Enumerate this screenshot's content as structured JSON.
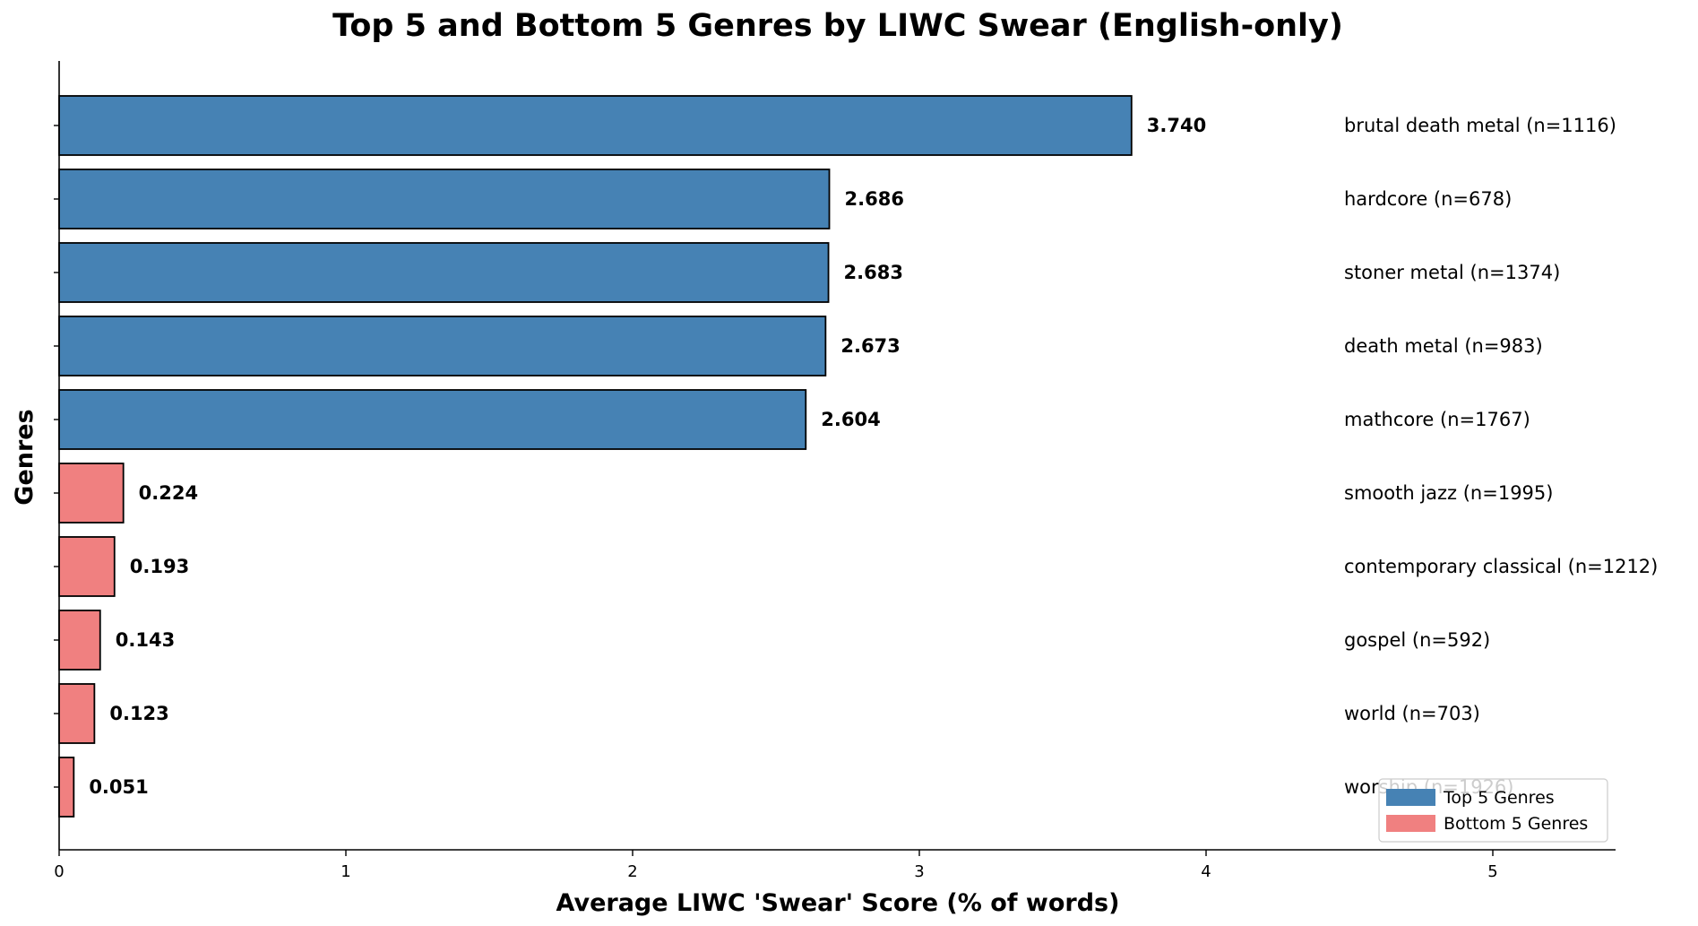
{
  "chart_data": {
    "type": "bar",
    "orientation": "horizontal",
    "title": "Top 5 and Bottom 5 Genres by LIWC Swear (English-only)",
    "xlabel": "Average LIWC 'Swear' Score (% of words)",
    "ylabel": "Genres",
    "xlim": [
      0,
      5.45
    ],
    "xticks": [
      "0",
      "1",
      "2",
      "3",
      "4",
      "5"
    ],
    "grid": false,
    "legend_position": "bottom-right",
    "colors": {
      "top": "#4682b4",
      "bottom": "#f08080",
      "edge": "#000000"
    },
    "legend": [
      {
        "label": "Top 5 Genres",
        "group": "top"
      },
      {
        "label": "Bottom 5 Genres",
        "group": "bottom"
      }
    ],
    "bars": [
      {
        "genre_label": "brutal death metal (n=1116)",
        "value": 3.74,
        "value_label": "3.740",
        "group": "top"
      },
      {
        "genre_label": "hardcore (n=678)",
        "value": 2.686,
        "value_label": "2.686",
        "group": "top"
      },
      {
        "genre_label": "stoner metal (n=1374)",
        "value": 2.683,
        "value_label": "2.683",
        "group": "top"
      },
      {
        "genre_label": "death metal (n=983)",
        "value": 2.673,
        "value_label": "2.673",
        "group": "top"
      },
      {
        "genre_label": "mathcore (n=1767)",
        "value": 2.604,
        "value_label": "2.604",
        "group": "top"
      },
      {
        "genre_label": "smooth jazz (n=1995)",
        "value": 0.224,
        "value_label": "0.224",
        "group": "bottom"
      },
      {
        "genre_label": "contemporary classical (n=1212)",
        "value": 0.193,
        "value_label": "0.193",
        "group": "bottom"
      },
      {
        "genre_label": "gospel (n=592)",
        "value": 0.143,
        "value_label": "0.143",
        "group": "bottom"
      },
      {
        "genre_label": "world (n=703)",
        "value": 0.123,
        "value_label": "0.123",
        "group": "bottom"
      },
      {
        "genre_label": "worship (n=1926)",
        "value": 0.051,
        "value_label": "0.051",
        "group": "bottom"
      }
    ]
  }
}
